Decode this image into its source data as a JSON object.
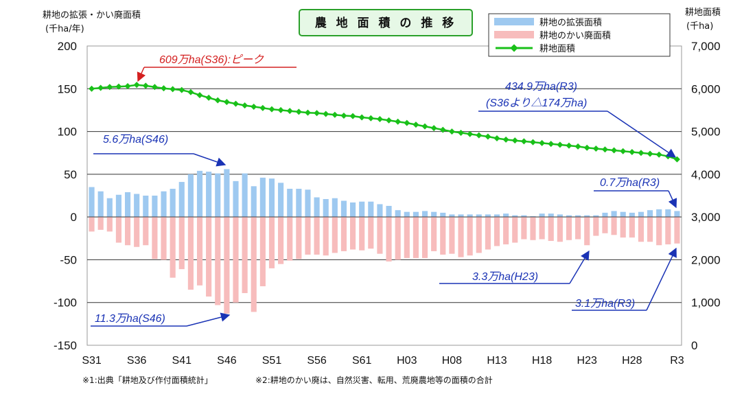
{
  "chart_data": {
    "type": "bar+line",
    "title": "農 地 面 積 の 推 移",
    "left_axis": {
      "title_line1": "耕地の拡張・かい廃面積",
      "title_line2": "(千ha/年)",
      "range": [
        -150,
        200
      ],
      "ticks": [
        "200",
        "150",
        "100",
        "50",
        "0",
        "-50",
        "-100",
        "-150"
      ]
    },
    "right_axis": {
      "title_line1": "耕地面積",
      "title_line2": "(千ha)",
      "range": [
        0,
        7000
      ],
      "ticks": [
        "7,000",
        "6,000",
        "5,000",
        "4,000",
        "3,000",
        "2,000",
        "1,000",
        "0"
      ]
    },
    "x_tick_labels": [
      "S31",
      "S36",
      "S41",
      "S46",
      "S51",
      "S56",
      "S61",
      "H03",
      "H08",
      "H13",
      "H18",
      "H23",
      "H28",
      "R3"
    ],
    "years": [
      "S31",
      "S32",
      "S33",
      "S34",
      "S35",
      "S36",
      "S37",
      "S38",
      "S39",
      "S40",
      "S41",
      "S42",
      "S43",
      "S44",
      "S45",
      "S46",
      "S47",
      "S48",
      "S49",
      "S50",
      "S51",
      "S52",
      "S53",
      "S54",
      "S55",
      "S56",
      "S57",
      "S58",
      "S59",
      "S60",
      "S61",
      "S62",
      "S63",
      "H01",
      "H02",
      "H03",
      "H04",
      "H05",
      "H06",
      "H07",
      "H08",
      "H09",
      "H10",
      "H11",
      "H12",
      "H13",
      "H14",
      "H15",
      "H16",
      "H17",
      "H18",
      "H19",
      "H20",
      "H21",
      "H22",
      "H23",
      "H24",
      "H25",
      "H26",
      "H27",
      "H28",
      "H29",
      "H30",
      "R1",
      "R2",
      "R3"
    ],
    "series": [
      {
        "name": "耕地の拡張面積",
        "kind": "bar",
        "axis": "left",
        "color": "#9ec9f0",
        "values": [
          35,
          30,
          22,
          26,
          29,
          27,
          25,
          25,
          30,
          33,
          41,
          50,
          54,
          53,
          51,
          56,
          42,
          51,
          36,
          46,
          45,
          40,
          33,
          33,
          32,
          23,
          21,
          22,
          19,
          17,
          18,
          18,
          15,
          13,
          8,
          6,
          6,
          7,
          6,
          5,
          3,
          3,
          3,
          3,
          3,
          3,
          4,
          2,
          2,
          1,
          4,
          4,
          3,
          2,
          2,
          2,
          2,
          5,
          7,
          6,
          5,
          6,
          8,
          9,
          9,
          7
        ]
      },
      {
        "name": "耕地のかい廃面積",
        "kind": "bar",
        "axis": "left",
        "color": "#f7bcbc",
        "values": [
          -17,
          -15,
          -17,
          -30,
          -33,
          -35,
          -33,
          -49,
          -50,
          -71,
          -61,
          -85,
          -80,
          -93,
          -103,
          -113,
          -100,
          -89,
          -111,
          -81,
          -60,
          -55,
          -51,
          -49,
          -44,
          -44,
          -45,
          -42,
          -40,
          -38,
          -39,
          -37,
          -43,
          -52,
          -50,
          -48,
          -48,
          -48,
          -40,
          -44,
          -43,
          -47,
          -45,
          -42,
          -38,
          -34,
          -32,
          -30,
          -26,
          -27,
          -26,
          -28,
          -29,
          -27,
          -26,
          -33,
          -22,
          -19,
          -21,
          -24,
          -24,
          -29,
          -29,
          -33,
          -32,
          -31
        ]
      },
      {
        "name": "耕地面積",
        "kind": "line",
        "axis": "right",
        "color": "#19c019",
        "values": [
          6000,
          6020,
          6040,
          6050,
          6060,
          6090,
          6070,
          6040,
          6010,
          5990,
          5970,
          5920,
          5850,
          5790,
          5730,
          5690,
          5650,
          5610,
          5580,
          5550,
          5520,
          5500,
          5480,
          5460,
          5440,
          5430,
          5410,
          5390,
          5370,
          5360,
          5330,
          5310,
          5290,
          5260,
          5230,
          5200,
          5160,
          5120,
          5080,
          5040,
          5000,
          4970,
          4940,
          4910,
          4880,
          4840,
          4810,
          4790,
          4770,
          4750,
          4730,
          4710,
          4690,
          4670,
          4650,
          4620,
          4600,
          4580,
          4560,
          4540,
          4520,
          4500,
          4480,
          4460,
          4420,
          4349
        ]
      }
    ],
    "legend": [
      "耕地の拡張面積",
      "耕地のかい廃面積",
      "耕地面積"
    ],
    "legend_placement": "top-right",
    "grid": true,
    "annotations": {
      "peak": "609万ha(S36):ピーク",
      "r3_area_line1": "434.9万ha(R3)",
      "r3_area_line2": "(S36より△174万ha)",
      "s46_expansion": "5.6万ha(S46)",
      "r3_expansion": "0.7万ha(R3)",
      "h23_abandon": "3.3万ha(H23)",
      "r3_abandon": "3.1万ha(R3)",
      "s46_abandon": "11.3万ha(S46)"
    }
  },
  "footnotes": {
    "note1": "※1:出典「耕地及び作付面積統計」",
    "note2": "※2:耕地のかい廃は、自然災害、転用、荒廃農地等の面積の合計"
  }
}
